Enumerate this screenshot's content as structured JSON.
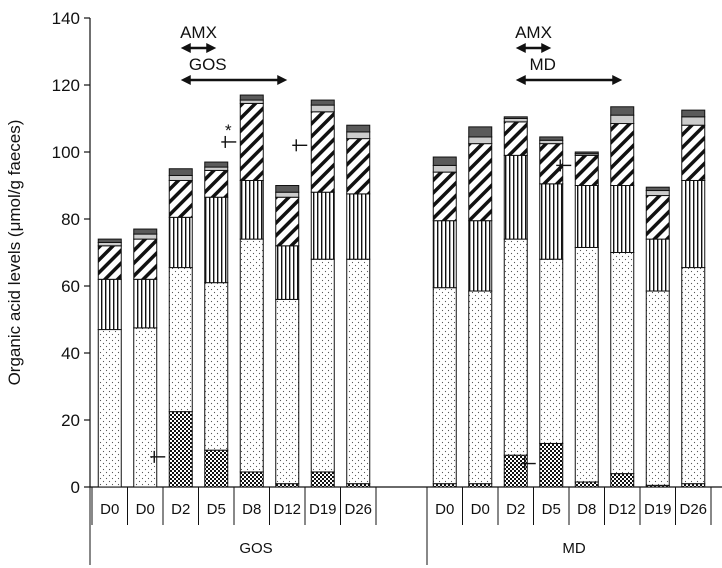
{
  "chart_data": {
    "type": "bar",
    "stacked": true,
    "ylabel": "Organic acid levels (μmol/g faeces)",
    "ylim": [
      0,
      140
    ],
    "yticks": [
      0,
      20,
      40,
      60,
      80,
      100,
      120,
      140
    ],
    "grid": false,
    "stack_order": [
      "seg1",
      "seg2",
      "seg3",
      "seg4",
      "seg5",
      "seg6"
    ],
    "groups": [
      {
        "label": "GOS",
        "categories": [
          "D0",
          "D0",
          "D2",
          "D5",
          "D8",
          "D12",
          "D19",
          "D26"
        ],
        "stacks": [
          [
            0,
            47,
            15,
            10,
            1,
            1
          ],
          [
            0,
            47.5,
            14.5,
            12,
            1.5,
            1.5
          ],
          [
            22.5,
            43,
            15,
            11,
            1.5,
            2
          ],
          [
            11,
            50,
            25.5,
            8,
            1,
            1.5
          ],
          [
            4.5,
            69.5,
            17.5,
            23,
            1,
            1.5
          ],
          [
            1,
            55,
            16,
            14.5,
            1.5,
            2
          ],
          [
            4.5,
            63.5,
            20,
            24,
            2,
            1.5
          ],
          [
            1,
            67,
            19.5,
            16.5,
            2,
            2
          ]
        ],
        "annotations": [
          {
            "label": "AMX",
            "from": 2,
            "to": 3
          },
          {
            "label": "GOS",
            "from": 2,
            "to": 5
          }
        ],
        "markers": [
          {
            "bar": 2,
            "side": "left",
            "y": 9
          },
          {
            "bar": 4,
            "side": "left",
            "y": 103,
            "star": "*"
          },
          {
            "bar": 6,
            "side": "left",
            "y": 102
          }
        ]
      },
      {
        "label": "MD",
        "categories": [
          "D0",
          "D0",
          "D2",
          "D5",
          "D8",
          "D12",
          "D19",
          "D26"
        ],
        "stacks": [
          [
            1,
            58.5,
            20,
            14.5,
            2,
            2.5
          ],
          [
            1,
            57.5,
            21,
            23,
            2,
            3
          ],
          [
            9.5,
            64.5,
            25,
            10,
            1,
            0.5
          ],
          [
            13,
            55,
            22.5,
            12,
            1,
            1
          ],
          [
            1.5,
            70,
            18.5,
            9,
            0.5,
            0.5
          ],
          [
            4,
            66,
            20,
            18.5,
            2.5,
            2.5
          ],
          [
            0.5,
            58,
            15.5,
            13,
            1.5,
            1
          ],
          [
            1,
            64.5,
            26,
            16.5,
            2.5,
            2
          ]
        ],
        "annotations": [
          {
            "label": "AMX",
            "from": 2,
            "to": 3
          },
          {
            "label": "MD",
            "from": 2,
            "to": 5
          }
        ],
        "markers": [
          {
            "bar": 3,
            "side": "left",
            "y": 7
          },
          {
            "bar": 4,
            "side": "left",
            "y": 96
          }
        ]
      }
    ]
  }
}
